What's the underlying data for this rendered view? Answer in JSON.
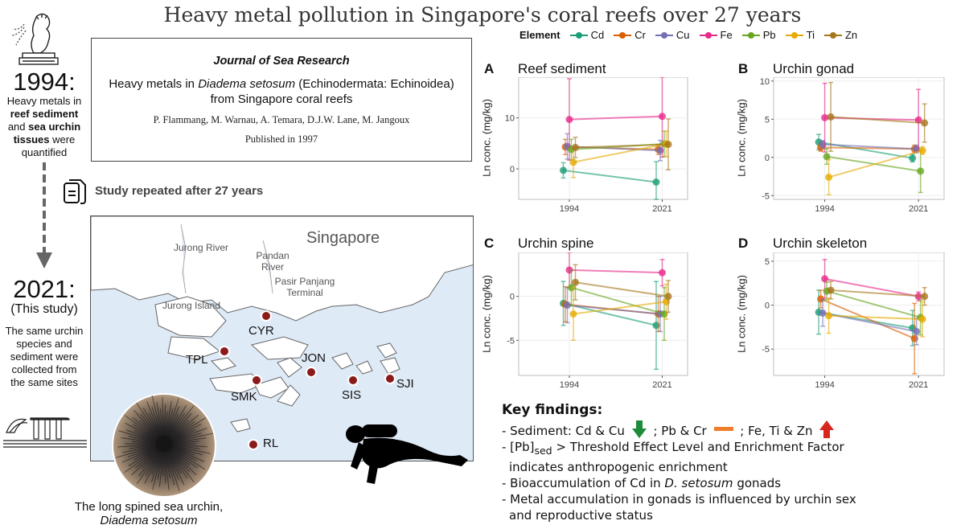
{
  "title": "Heavy metal pollution in Singapore's coral reefs over 27 years",
  "left_column": {
    "year_1994": "1994:",
    "desc_1994": [
      {
        "text": "Heavy metals in",
        "bold": false
      },
      {
        "text": "reef sediment",
        "bold": true
      },
      {
        "text": "and ",
        "bold": false,
        "inline_next": "sea urchin"
      },
      {
        "text": "tissues",
        "bold": true,
        "suffix": " were"
      },
      {
        "text": "quantified",
        "bold": false
      }
    ],
    "year_2021": "2021:",
    "this_study": "(This study)",
    "desc_2021": [
      "The same urchin",
      "species and",
      "sediment were",
      "collected from",
      "the same sites"
    ]
  },
  "journal": {
    "name": "Journal of Sea Research",
    "title_line1_pre": "Heavy metals in ",
    "title_line1_italic": "Diadema setosum",
    "title_line1_post": " (Echinodermata: Echinoidea)",
    "title_line2": "from Singapore coral reefs",
    "authors": "P. Flammang, M. Warnau, A. Temara, D.J.W. Lane, M. Jangoux",
    "published": "Published in 1997"
  },
  "repeat_label": "Study repeated after 27 years",
  "map": {
    "country": "Singapore",
    "places": [
      "Jurong River",
      "Pandan River",
      "Pasir Panjang Terminal",
      "Jurong Island"
    ],
    "sites": [
      "CYR",
      "TPL",
      "JON",
      "SMK",
      "SIS",
      "SJI",
      "RL"
    ]
  },
  "caption": {
    "line1": "The long spined sea urchin,",
    "line2": "Diadema setosum"
  },
  "legend": {
    "title": "Element",
    "items": [
      {
        "name": "Cd",
        "color": "#1b9e77"
      },
      {
        "name": "Cr",
        "color": "#d95f02"
      },
      {
        "name": "Cu",
        "color": "#7570b3"
      },
      {
        "name": "Fe",
        "color": "#e7298a"
      },
      {
        "name": "Pb",
        "color": "#66a61e"
      },
      {
        "name": "Ti",
        "color": "#e6ab02"
      },
      {
        "name": "Zn",
        "color": "#a6761d"
      }
    ]
  },
  "chart_data": [
    {
      "type": "line",
      "panel": "A",
      "title": "Reef sediment",
      "ylabel": "Ln conc. (mg/kg)",
      "categories": [
        "1994",
        "2021"
      ],
      "ylim": [
        -6,
        18
      ],
      "yticks": [
        0,
        10
      ],
      "series": [
        {
          "name": "Cd",
          "values": [
            -0.3,
            -2.6
          ],
          "err": [
            1.5,
            4.0
          ]
        },
        {
          "name": "Cr",
          "values": [
            4.3,
            3.8
          ],
          "err": [
            1.5,
            1.0
          ]
        },
        {
          "name": "Cu",
          "values": [
            4.4,
            3.6
          ],
          "err": [
            2.5,
            2.0
          ]
        },
        {
          "name": "Fe",
          "values": [
            9.7,
            10.3
          ],
          "err": [
            8.0,
            8.0
          ]
        },
        {
          "name": "Pb",
          "values": [
            3.8,
            4.9
          ],
          "err": [
            2.0,
            2.5
          ]
        },
        {
          "name": "Ti",
          "values": [
            1.3,
            4.9
          ],
          "err": [
            3.0,
            2.5
          ]
        },
        {
          "name": "Zn",
          "values": [
            4.2,
            4.8
          ],
          "err": [
            2.0,
            5.0
          ]
        }
      ]
    },
    {
      "type": "line",
      "panel": "B",
      "title": "Urchin gonad",
      "ylabel": "Ln conc. (mg/kg)",
      "categories": [
        "1994",
        "2021"
      ],
      "ylim": [
        -5.5,
        10.5
      ],
      "yticks": [
        -5,
        0,
        5,
        10
      ],
      "series": [
        {
          "name": "Cd",
          "values": [
            2.0,
            -0.1
          ],
          "err": [
            1.0,
            0.5
          ]
        },
        {
          "name": "Cr",
          "values": [
            1.3,
            1.1
          ],
          "err": [
            0.5,
            0.5
          ]
        },
        {
          "name": "Cu",
          "values": [
            1.7,
            1.1
          ],
          "err": [
            0.5,
            0.5
          ]
        },
        {
          "name": "Fe",
          "values": [
            5.2,
            4.9
          ],
          "err": [
            4.5,
            4.0
          ]
        },
        {
          "name": "Pb",
          "values": [
            0.1,
            -1.8
          ],
          "err": [
            1.0,
            2.8
          ]
        },
        {
          "name": "Ti",
          "values": [
            -2.6,
            0.9
          ],
          "err": [
            2.3,
            0.5
          ]
        },
        {
          "name": "Zn",
          "values": [
            5.3,
            4.5
          ],
          "err": [
            4.5,
            2.5
          ]
        }
      ]
    },
    {
      "type": "line",
      "panel": "C",
      "title": "Urchin spine",
      "ylabel": "Ln conc. (mg/kg)",
      "categories": [
        "1994",
        "2021"
      ],
      "ylim": [
        -9,
        5
      ],
      "yticks": [
        -5,
        0
      ],
      "series": [
        {
          "name": "Cd",
          "values": [
            -0.8,
            -3.3
          ],
          "err": [
            2.5,
            5.0
          ]
        },
        {
          "name": "Cr",
          "values": [
            -0.9,
            -2.0
          ],
          "err": [
            2.0,
            2.0
          ]
        },
        {
          "name": "Cu",
          "values": [
            -1.0,
            -2.0
          ],
          "err": [
            2.0,
            2.0
          ]
        },
        {
          "name": "Fe",
          "values": [
            3.0,
            2.7
          ],
          "err": [
            2.0,
            1.5
          ]
        },
        {
          "name": "Pb",
          "values": [
            1.0,
            -2.0
          ],
          "err": [
            2.0,
            3.0
          ]
        },
        {
          "name": "Ti",
          "values": [
            -2.0,
            -0.6
          ],
          "err": [
            3.0,
            2.0
          ]
        },
        {
          "name": "Zn",
          "values": [
            1.6,
            0.0
          ],
          "err": [
            2.0,
            1.8
          ]
        }
      ]
    },
    {
      "type": "line",
      "panel": "D",
      "title": "Urchin skeleton",
      "ylabel": "Ln conc. (mg/kg)",
      "categories": [
        "1994",
        "2021"
      ],
      "ylim": [
        -8,
        6
      ],
      "yticks": [
        -5,
        0,
        5
      ],
      "series": [
        {
          "name": "Cd",
          "values": [
            -0.8,
            -2.6
          ],
          "err": [
            2.5,
            2.0
          ]
        },
        {
          "name": "Cr",
          "values": [
            0.7,
            -3.8
          ],
          "err": [
            1.0,
            4.0
          ]
        },
        {
          "name": "Cu",
          "values": [
            -0.9,
            -3.0
          ],
          "err": [
            1.5,
            1.5
          ]
        },
        {
          "name": "Fe",
          "values": [
            3.0,
            1.0
          ],
          "err": [
            2.2,
            0.5
          ]
        },
        {
          "name": "Pb",
          "values": [
            1.6,
            -1.4
          ],
          "err": [
            1.0,
            2.0
          ]
        },
        {
          "name": "Ti",
          "values": [
            -1.2,
            -1.6
          ],
          "err": [
            2.0,
            2.0
          ]
        },
        {
          "name": "Zn",
          "values": [
            1.7,
            1.0
          ],
          "err": [
            1.0,
            1.0
          ]
        }
      ]
    }
  ],
  "key_findings": {
    "title": "Key findings:",
    "sed_prefix": "- Sediment: Cd & Cu",
    "sed_mid1": "; Pb & Cr",
    "sed_mid2": "; Fe, Ti & Zn",
    "arrow_down_color": "#1e8a3a",
    "dash_color": "#ef7d2b",
    "arrow_up_color": "#d7261e",
    "line2_pre": "- [Pb]",
    "line2_sub": "sed",
    "line2_post": " > Threshold Effect Level and Enrichment Factor",
    "line3": "indicates anthropogenic enrichment",
    "line4_pre": "- Bioaccumulation of Cd in ",
    "line4_italic": "D. setosum",
    "line4_post": " gonads",
    "line5": "- Metal accumulation in gonads is influenced by urchin sex",
    "line6": "and reproductive status"
  }
}
